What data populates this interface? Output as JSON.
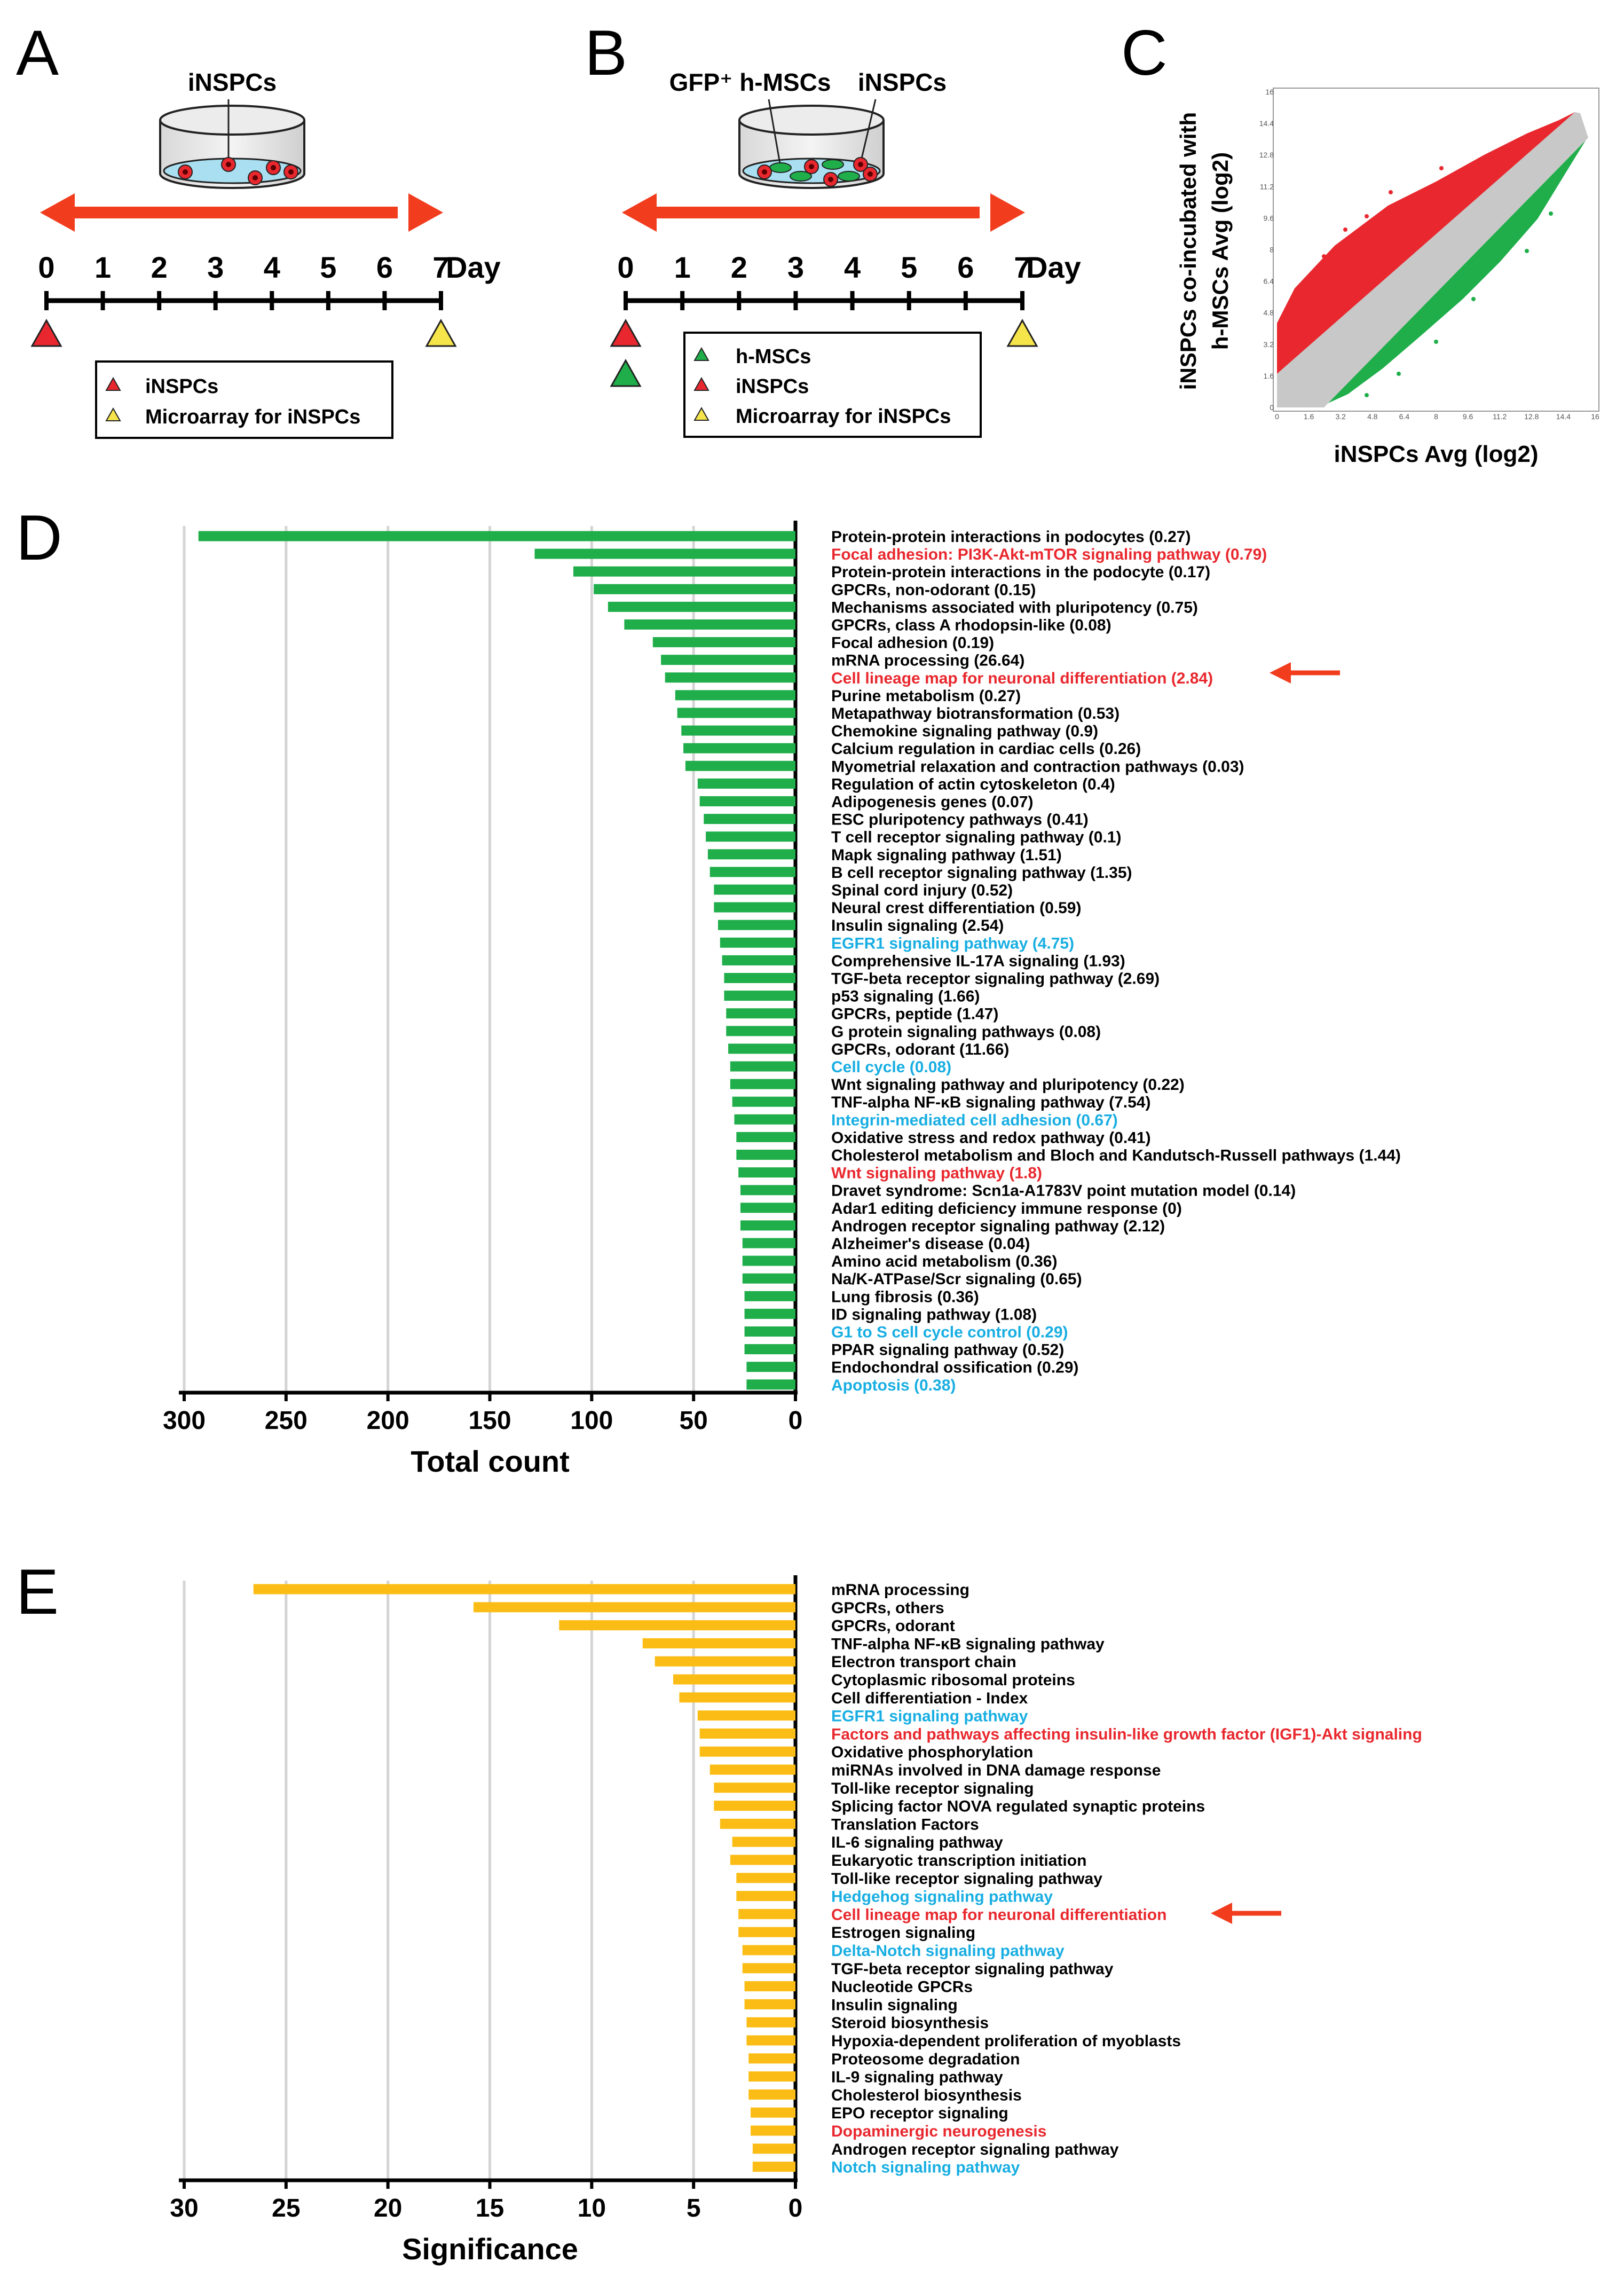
{
  "panels": {
    "A": {
      "label": "A",
      "dish_label": "iNSPCs",
      "days": [
        "0",
        "1",
        "2",
        "3",
        "4",
        "5",
        "6",
        "7"
      ],
      "day_unit": "Day",
      "legend": [
        "iNSPCs",
        "Microarray for iNSPCs"
      ]
    },
    "B": {
      "label": "B",
      "dish_label_left": "GFP⁺ h-MSCs",
      "dish_label_right": "iNSPCs",
      "days": [
        "0",
        "1",
        "2",
        "3",
        "4",
        "5",
        "6",
        "7"
      ],
      "day_unit": "Day",
      "legend": [
        "h-MSCs",
        "iNSPCs",
        "Microarray for iNSPCs"
      ]
    },
    "C": {
      "label": "C",
      "ylabel_line1": "iNSPCs co-incubated with",
      "ylabel_line2": "h-MSCs  Avg (log2)",
      "xlabel": "iNSPCs  Avg (log2)",
      "ticks": [
        "0",
        "1.6",
        "3.2",
        "4.8",
        "6.4",
        "8",
        "9.6",
        "11.2",
        "12.8",
        "14.4",
        "16"
      ]
    },
    "D": {
      "label": "D"
    },
    "E": {
      "label": "E"
    }
  },
  "colors": {
    "red": "#e8282e",
    "green": "#1fae4a",
    "yellow": "#f5e44a",
    "orange_arrow": "#f23c1e",
    "bar_green": "#1fae4a",
    "bar_yellow": "#fbbd15",
    "cyan": "#18aee2",
    "scatter_gray": "#c8c8c8"
  },
  "chart_data": [
    {
      "id": "D",
      "type": "bar",
      "orientation": "horizontal-reversed",
      "xlabel": "Total count",
      "xlim": [
        0,
        300
      ],
      "xticks": [
        300,
        250,
        200,
        150,
        100,
        50,
        0
      ],
      "highlight_arrow_index": 8,
      "categories": [
        {
          "label": "Protein-protein interactions in podocytes (0.27)",
          "color": "black"
        },
        {
          "label": "Focal adhesion: PI3K-Akt-mTOR signaling pathway (0.79)",
          "color": "red"
        },
        {
          "label": "Protein-protein interactions in the podocyte (0.17)",
          "color": "black"
        },
        {
          "label": "GPCRs, non-odorant (0.15)",
          "color": "black"
        },
        {
          "label": "Mechanisms associated with pluripotency (0.75)",
          "color": "black"
        },
        {
          "label": "GPCRs, class A rhodopsin-like (0.08)",
          "color": "black"
        },
        {
          "label": "Focal adhesion (0.19)",
          "color": "black"
        },
        {
          "label": "mRNA processing (26.64)",
          "color": "black"
        },
        {
          "label": "Cell lineage map for neuronal differentiation (2.84)",
          "color": "red"
        },
        {
          "label": "Purine metabolism (0.27)",
          "color": "black"
        },
        {
          "label": "Metapathway biotransformation (0.53)",
          "color": "black"
        },
        {
          "label": "Chemokine signaling pathway (0.9)",
          "color": "black"
        },
        {
          "label": "Calcium regulation in cardiac cells (0.26)",
          "color": "black"
        },
        {
          "label": "Myometrial relaxation and contraction pathways (0.03)",
          "color": "black"
        },
        {
          "label": "Regulation of actin cytoskeleton (0.4)",
          "color": "black"
        },
        {
          "label": "Adipogenesis genes (0.07)",
          "color": "black"
        },
        {
          "label": "ESC pluripotency pathways (0.41)",
          "color": "black"
        },
        {
          "label": "T cell receptor signaling pathway (0.1)",
          "color": "black"
        },
        {
          "label": "Mapk signaling pathway (1.51)",
          "color": "black"
        },
        {
          "label": "B cell receptor signaling pathway (1.35)",
          "color": "black"
        },
        {
          "label": "Spinal cord injury (0.52)",
          "color": "black"
        },
        {
          "label": "Neural crest differentiation (0.59)",
          "color": "black"
        },
        {
          "label": "Insulin signaling (2.54)",
          "color": "black"
        },
        {
          "label": "EGFR1 signaling pathway (4.75)",
          "color": "cyan"
        },
        {
          "label": "Comprehensive IL-17A signaling (1.93)",
          "color": "black"
        },
        {
          "label": "TGF-beta receptor signaling pathway (2.69)",
          "color": "black"
        },
        {
          "label": "p53 signaling (1.66)",
          "color": "black"
        },
        {
          "label": "GPCRs, peptide (1.47)",
          "color": "black"
        },
        {
          "label": "G protein signaling pathways (0.08)",
          "color": "black"
        },
        {
          "label": "GPCRs, odorant (11.66)",
          "color": "black"
        },
        {
          "label": "Cell cycle (0.08)",
          "color": "cyan"
        },
        {
          "label": "Wnt signaling pathway and pluripotency (0.22)",
          "color": "black"
        },
        {
          "label": "TNF-alpha NF-κB signaling pathway (7.54)",
          "color": "black"
        },
        {
          "label": "Integrin-mediated cell adhesion (0.67)",
          "color": "cyan"
        },
        {
          "label": "Oxidative stress and redox pathway (0.41)",
          "color": "black"
        },
        {
          "label": "Cholesterol metabolism and Bloch and Kandutsch-Russell pathways (1.44)",
          "color": "black"
        },
        {
          "label": "Wnt signaling pathway (1.8)",
          "color": "red"
        },
        {
          "label": "Dravet syndrome: Scn1a-A1783V point mutation model (0.14)",
          "color": "black"
        },
        {
          "label": "Adar1 editing deficiency immune response (0)",
          "color": "black"
        },
        {
          "label": "Androgen receptor signaling pathway (2.12)",
          "color": "black"
        },
        {
          "label": "Alzheimer's disease  (0.04)",
          "color": "black"
        },
        {
          "label": "Amino acid metabolism (0.36)",
          "color": "black"
        },
        {
          "label": "Na/K-ATPase/Scr signaling (0.65)",
          "color": "black"
        },
        {
          "label": "Lung fibrosis (0.36)",
          "color": "black"
        },
        {
          "label": "ID signaling pathway (1.08)",
          "color": "black"
        },
        {
          "label": "G1 to S cell cycle control (0.29)",
          "color": "cyan"
        },
        {
          "label": "PPAR signaling pathway (0.52)",
          "color": "black"
        },
        {
          "label": "Endochondral ossification (0.29)",
          "color": "black"
        },
        {
          "label": "Apoptosis (0.38)",
          "color": "cyan"
        }
      ],
      "values": [
        293,
        128,
        109,
        99,
        92,
        84,
        70,
        66,
        64,
        59,
        58,
        56,
        55,
        54,
        48,
        47,
        45,
        44,
        43,
        42,
        40,
        40,
        38,
        37,
        36,
        35,
        35,
        34,
        34,
        33,
        32,
        32,
        31,
        30,
        29,
        29,
        28,
        27,
        27,
        27,
        26,
        26,
        26,
        25,
        25,
        25,
        25,
        24,
        24
      ]
    },
    {
      "id": "E",
      "type": "bar",
      "orientation": "horizontal-reversed",
      "xlabel": "Significance",
      "xlim": [
        0,
        30
      ],
      "xticks": [
        30,
        25,
        20,
        15,
        10,
        5,
        0
      ],
      "highlight_arrow_index": 18,
      "categories": [
        {
          "label": "mRNA processing",
          "color": "black"
        },
        {
          "label": "GPCRs, others",
          "color": "black"
        },
        {
          "label": "GPCRs, odorant",
          "color": "black"
        },
        {
          "label": "TNF-alpha NF-κB signaling pathway",
          "color": "black"
        },
        {
          "label": "Electron transport chain",
          "color": "black"
        },
        {
          "label": "Cytoplasmic ribosomal proteins",
          "color": "black"
        },
        {
          "label": "Cell differentiation - Index",
          "color": "black"
        },
        {
          "label": "EGFR1 signaling pathway",
          "color": "cyan"
        },
        {
          "label": "Factors and pathways affecting insulin-like growth factor (IGF1)-Akt signaling",
          "color": "red"
        },
        {
          "label": "Oxidative phosphorylation",
          "color": "black"
        },
        {
          "label": "miRNAs involved in DNA damage response",
          "color": "black"
        },
        {
          "label": "Toll-like receptor signaling",
          "color": "black"
        },
        {
          "label": "Splicing factor NOVA regulated synaptic proteins",
          "color": "black"
        },
        {
          "label": "Translation Factors",
          "color": "black"
        },
        {
          "label": "IL-6 signaling pathway",
          "color": "black"
        },
        {
          "label": "Eukaryotic transcription initiation",
          "color": "black"
        },
        {
          "label": "Toll-like receptor signaling pathway",
          "color": "black"
        },
        {
          "label": "Hedgehog signaling pathway",
          "color": "cyan"
        },
        {
          "label": "Cell lineage map for neuronal differentiation",
          "color": "red"
        },
        {
          "label": "Estrogen signaling",
          "color": "black"
        },
        {
          "label": "Delta-Notch signaling pathway",
          "color": "cyan"
        },
        {
          "label": "TGF-beta receptor signaling pathway",
          "color": "black"
        },
        {
          "label": "Nucleotide GPCRs",
          "color": "black"
        },
        {
          "label": "Insulin signaling",
          "color": "black"
        },
        {
          "label": "Steroid biosynthesis",
          "color": "black"
        },
        {
          "label": "Hypoxia-dependent proliferation of myoblasts",
          "color": "black"
        },
        {
          "label": "Proteosome degradation",
          "color": "black"
        },
        {
          "label": "IL-9 signaling pathway",
          "color": "black"
        },
        {
          "label": "Cholesterol biosynthesis",
          "color": "black"
        },
        {
          "label": "EPO receptor signaling",
          "color": "black"
        },
        {
          "label": "Dopaminergic neurogenesis",
          "color": "red"
        },
        {
          "label": "Androgen receptor signaling pathway",
          "color": "black"
        },
        {
          "label": "Notch signaling pathway",
          "color": "cyan"
        }
      ],
      "values": [
        26.6,
        15.8,
        11.6,
        7.5,
        6.9,
        6.0,
        5.7,
        4.8,
        4.7,
        4.7,
        4.2,
        4.0,
        4.0,
        3.7,
        3.1,
        3.2,
        2.9,
        2.9,
        2.8,
        2.8,
        2.6,
        2.6,
        2.5,
        2.5,
        2.4,
        2.4,
        2.3,
        2.3,
        2.3,
        2.2,
        2.2,
        2.1,
        2.1
      ]
    }
  ]
}
